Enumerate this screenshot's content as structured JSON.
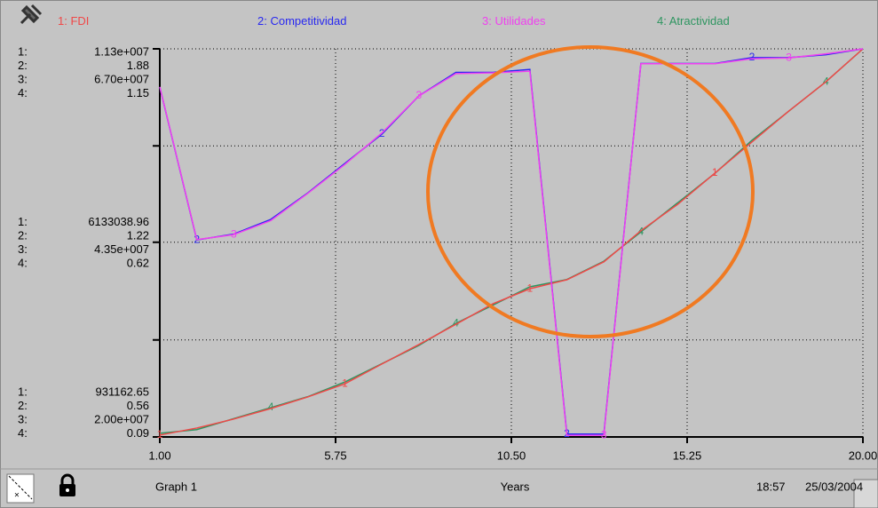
{
  "chart_data": {
    "type": "line",
    "x": [
      1,
      2,
      3,
      4,
      5,
      6,
      7,
      8,
      9,
      10,
      11,
      12,
      13,
      14,
      15,
      16,
      17,
      18,
      19,
      20
    ],
    "xlim": [
      1,
      20
    ],
    "xticks": [
      {
        "value": 1,
        "label": "1.00"
      },
      5.75,
      {
        "value": 10.5,
        "label": "10.50"
      },
      15.25,
      {
        "value": 20,
        "label": "20.00"
      }
    ],
    "x_label": "Years",
    "y_grid_divisions": 4,
    "graph_name": "Graph 1",
    "time": "18:57",
    "date": "25/03/2004",
    "series": [
      {
        "key": "1",
        "axis_prefix": "1:",
        "name": "FDI",
        "color": "#f04848",
        "values": [
          980000,
          1170000,
          1410000,
          1690000,
          2000000,
          2350000,
          2880000,
          3400000,
          3940000,
          4490000,
          4890000,
          5130000,
          5610000,
          6440000,
          7150000,
          7980000,
          8810000,
          9640000,
          10420000,
          11300000
        ],
        "ylim": [
          931162.65,
          11300000
        ],
        "yticks": [
          931162.65,
          6133038.96,
          {
            "value": 11300000,
            "label": "1.13e+007"
          }
        ]
      },
      {
        "key": "2",
        "axis_prefix": "2:",
        "name": "Competitividad",
        "color": "#2828f0",
        "values": [
          1.75,
          1.23,
          1.25,
          1.3,
          1.39,
          1.49,
          1.59,
          1.72,
          1.8,
          1.8,
          1.81,
          0.57,
          0.57,
          1.83,
          1.83,
          1.83,
          1.85,
          1.85,
          1.86,
          1.88
        ],
        "ylim": [
          0.56,
          1.88
        ],
        "yticks": [
          0.56,
          1.22,
          1.88
        ]
      },
      {
        "key": "3",
        "axis_prefix": "3:",
        "name": "Utilidades",
        "color": "#f040f0",
        "values": [
          62400000,
          43900000,
          44500000,
          46200000,
          49500000,
          53000000,
          56800000,
          61300000,
          64000000,
          64100000,
          64300000,
          20200000,
          20200000,
          65200000,
          65200000,
          65200000,
          65800000,
          65900000,
          66400000,
          67000000
        ],
        "ylim": [
          20000000,
          67000000
        ],
        "yticks": [
          {
            "value": 20000000,
            "label": "2.00e+007"
          },
          {
            "value": 43500000,
            "label": "4.35e+007"
          },
          {
            "value": 67000000,
            "label": "6.70e+007"
          }
        ]
      },
      {
        "key": "4",
        "axis_prefix": "4:",
        "name": "Atractividad",
        "color": "#2e9560",
        "values": [
          0.1,
          0.11,
          0.14,
          0.17,
          0.2,
          0.24,
          0.29,
          0.34,
          0.4,
          0.45,
          0.5,
          0.52,
          0.57,
          0.65,
          0.73,
          0.81,
          0.9,
          0.98,
          1.06,
          1.15
        ],
        "ylim": [
          0.09,
          1.15
        ],
        "yticks": [
          0.09,
          0.62,
          1.15
        ]
      }
    ]
  }
}
